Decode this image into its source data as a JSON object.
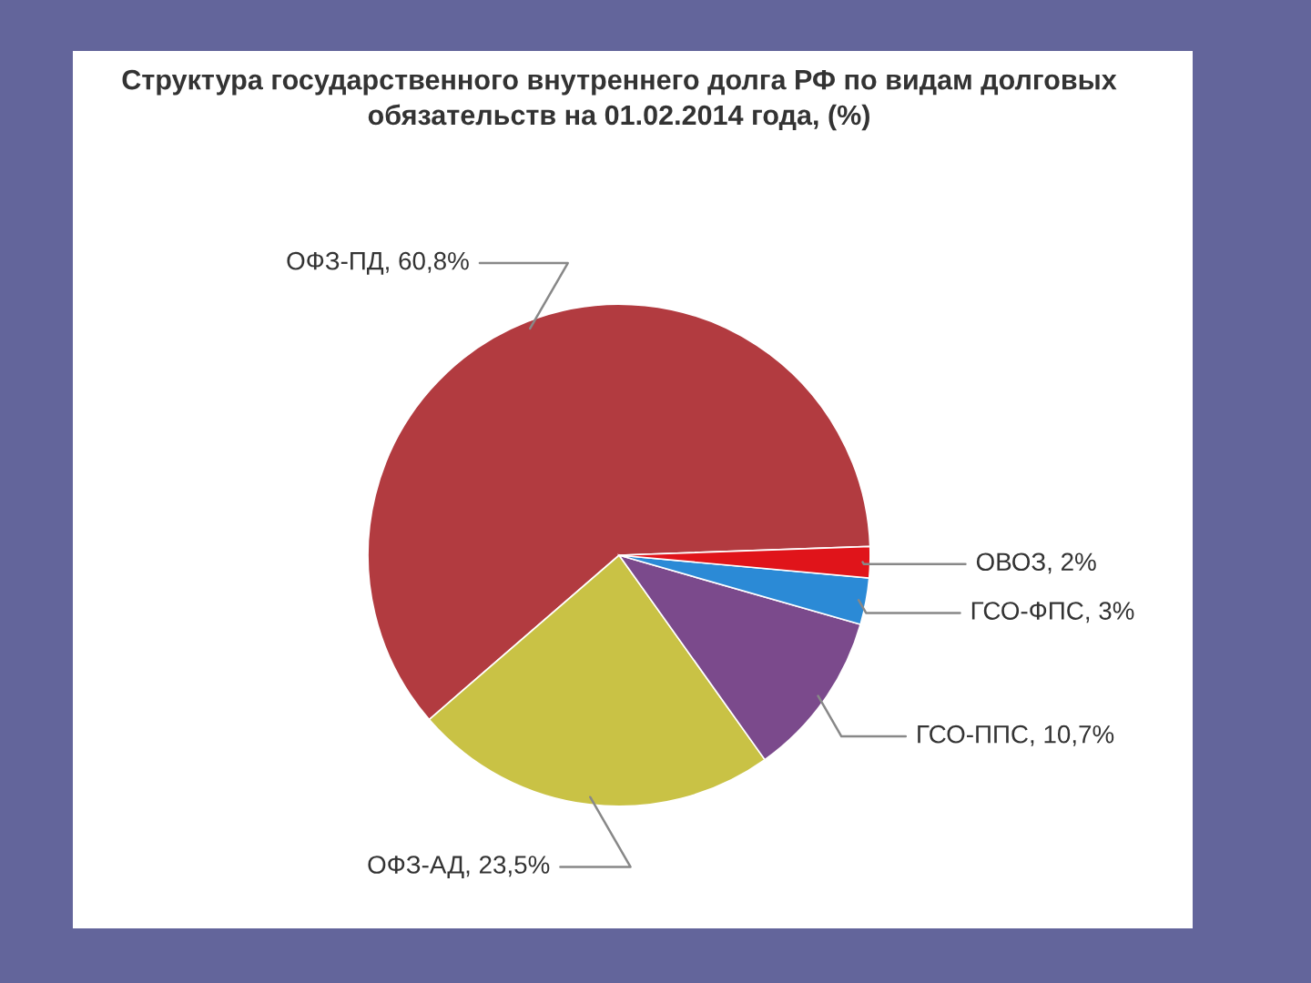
{
  "chart_data": {
    "type": "pie",
    "title": "Структура государственного внутреннего долга РФ по видам долговых\nобязательств на 01.02.2014 года, (%)",
    "categories": [
      "ОФЗ-ПД",
      "ОФЗ-АД",
      "ГСО-ППС",
      "ГСО-ФПС",
      "ОВОЗ"
    ],
    "values": [
      60.8,
      23.5,
      10.7,
      3,
      2
    ],
    "value_labels": [
      "60,8%",
      "23,5%",
      "10,7%",
      "3%",
      "2%"
    ],
    "colors": [
      "#b23b40",
      "#c9c245",
      "#7b4a8c",
      "#2b8ad6",
      "#e0141a"
    ]
  }
}
